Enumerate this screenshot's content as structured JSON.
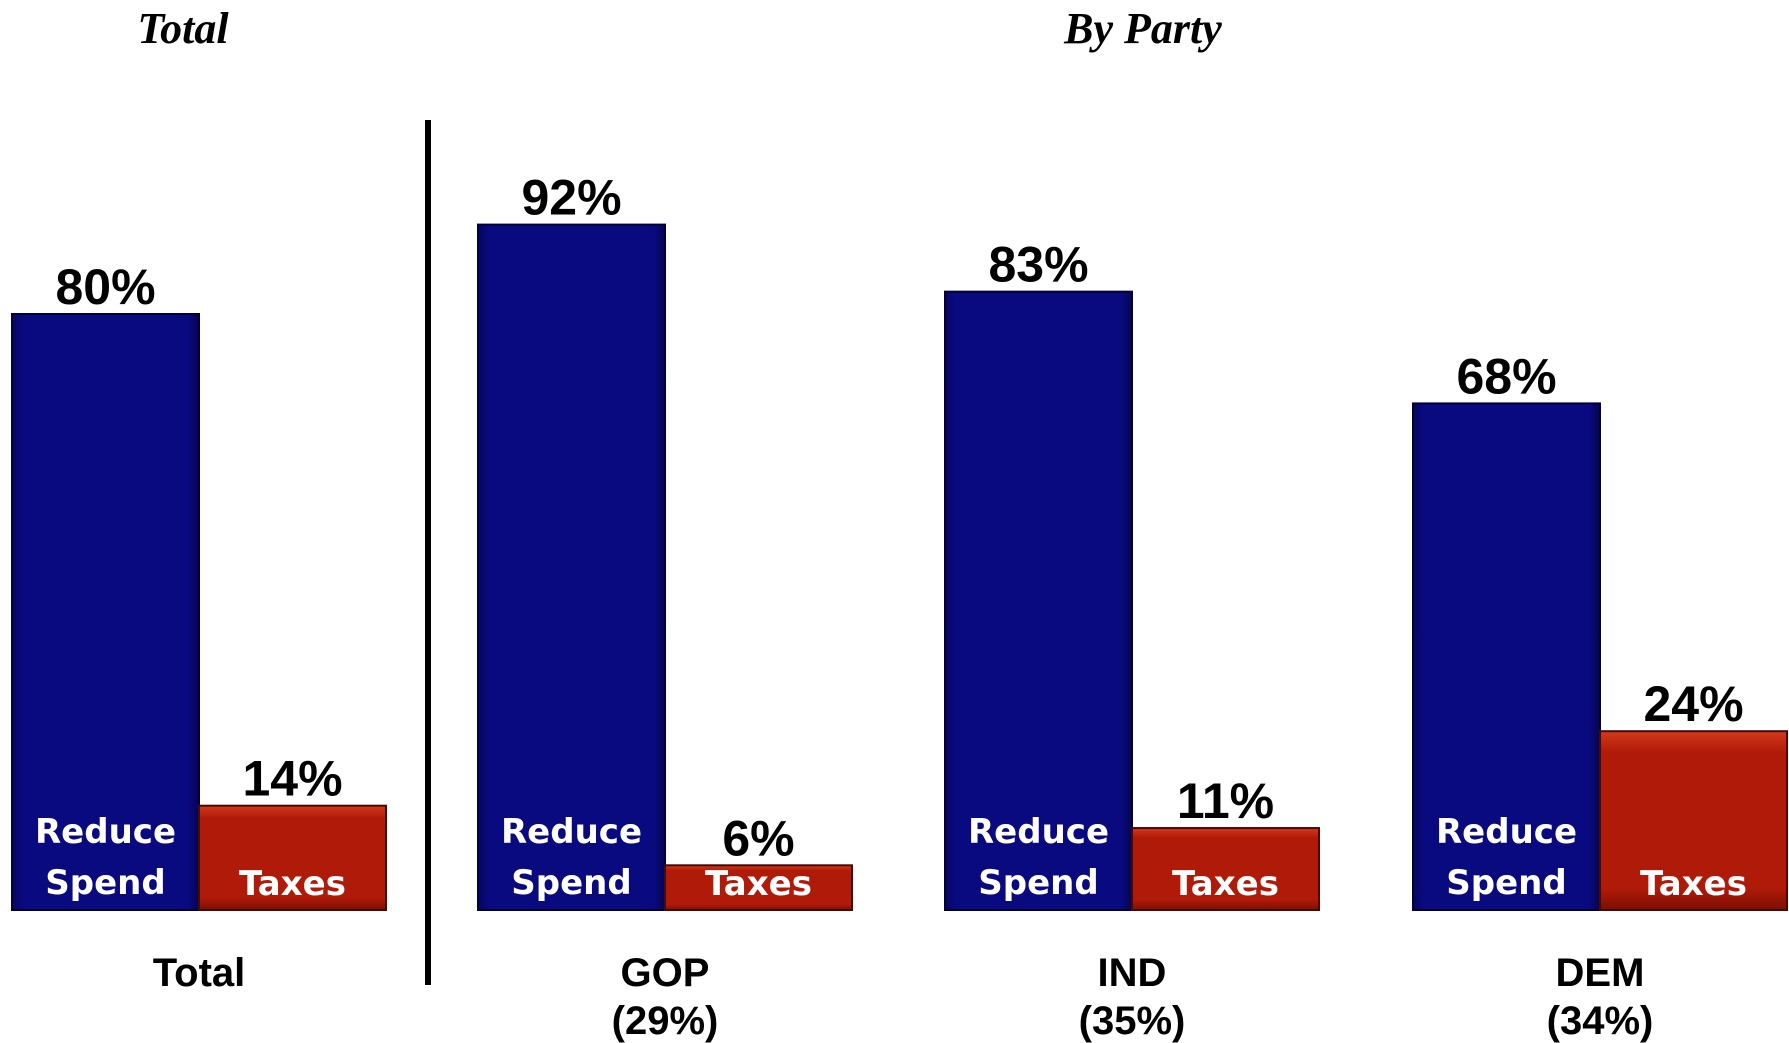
{
  "titles": {
    "total": "Total",
    "by_party": "By Party"
  },
  "colors": {
    "reduce_spend": "#0a0a80",
    "taxes": "#b01a08",
    "divider": "#000000"
  },
  "chart_data": {
    "type": "bar",
    "ylim": [
      0,
      100
    ],
    "grid": false,
    "legend": "none",
    "series_labels": {
      "reduce_spend": [
        "Reduce",
        "Spend"
      ],
      "taxes": [
        "Taxes"
      ]
    },
    "groups": [
      {
        "label": "Total",
        "sublabel": "",
        "reduce_spend": 80,
        "taxes": 14,
        "reduce_spend_label": "80%",
        "taxes_label": "14%"
      },
      {
        "label": "GOP",
        "sublabel": "(29%)",
        "reduce_spend": 92,
        "taxes": 6,
        "reduce_spend_label": "92%",
        "taxes_label": "6%"
      },
      {
        "label": "IND",
        "sublabel": "(35%)",
        "reduce_spend": 83,
        "taxes": 11,
        "reduce_spend_label": "83%",
        "taxes_label": "11%"
      },
      {
        "label": "DEM",
        "sublabel": "(34%)",
        "reduce_spend": 68,
        "taxes": 24,
        "reduce_spend_label": "68%",
        "taxes_label": "24%"
      }
    ]
  }
}
